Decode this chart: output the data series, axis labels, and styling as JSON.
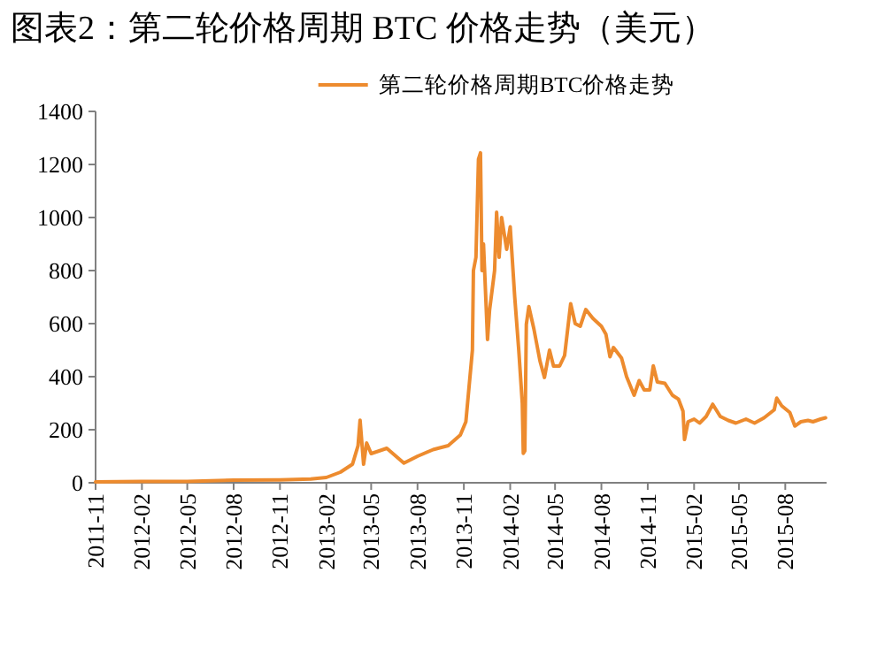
{
  "chart_data": {
    "type": "line",
    "title": "图表2：第二轮价格周期 BTC 价格走势（美元）",
    "legend": "top",
    "grid": false,
    "xlim": [
      "2011-11-01",
      "2015-10-22"
    ],
    "xticks": [
      "2011-11",
      "2012-02",
      "2012-05",
      "2012-08",
      "2012-11",
      "2013-02",
      "2013-05",
      "2013-08",
      "2013-11",
      "2014-02",
      "2014-05",
      "2014-08",
      "2014-11",
      "2015-02",
      "2015-05",
      "2015-08"
    ],
    "ylim": [
      0,
      1400
    ],
    "yticks": [
      0,
      200,
      400,
      600,
      800,
      1000,
      1200,
      1400
    ],
    "series": [
      {
        "name": "第二轮价格周期BTC价格走势",
        "color": "#ed8b2e",
        "x": [
          "2011-11-01",
          "2012-02-01",
          "2012-05-01",
          "2012-08-01",
          "2012-11-01",
          "2013-01-01",
          "2013-02-01",
          "2013-03-01",
          "2013-03-25",
          "2013-04-05",
          "2013-04-09",
          "2013-04-16",
          "2013-04-22",
          "2013-05-01",
          "2013-06-01",
          "2013-07-05",
          "2013-08-01",
          "2013-09-01",
          "2013-10-01",
          "2013-10-25",
          "2013-11-05",
          "2013-11-18",
          "2013-11-20",
          "2013-11-25",
          "2013-11-30",
          "2013-12-04",
          "2013-12-07",
          "2013-12-10",
          "2013-12-18",
          "2013-12-22",
          "2014-01-01",
          "2014-01-05",
          "2014-01-10",
          "2014-01-15",
          "2014-01-25",
          "2014-02-01",
          "2014-02-10",
          "2014-02-18",
          "2014-02-25",
          "2014-02-27",
          "2014-03-02",
          "2014-03-05",
          "2014-03-10",
          "2014-03-20",
          "2014-04-01",
          "2014-04-10",
          "2014-04-20",
          "2014-04-28",
          "2014-05-10",
          "2014-05-20",
          "2014-06-01",
          "2014-06-10",
          "2014-06-20",
          "2014-07-01",
          "2014-07-15",
          "2014-08-01",
          "2014-08-10",
          "2014-08-18",
          "2014-08-25",
          "2014-09-10",
          "2014-09-20",
          "2014-10-05",
          "2014-10-15",
          "2014-10-25",
          "2014-11-05",
          "2014-11-12",
          "2014-11-20",
          "2014-12-05",
          "2014-12-20",
          "2015-01-01",
          "2015-01-10",
          "2015-01-13",
          "2015-01-20",
          "2015-02-01",
          "2015-02-12",
          "2015-02-25",
          "2015-03-10",
          "2015-03-25",
          "2015-04-10",
          "2015-04-25",
          "2015-05-15",
          "2015-06-01",
          "2015-06-20",
          "2015-07-10",
          "2015-07-15",
          "2015-07-25",
          "2015-08-10",
          "2015-08-20",
          "2015-09-01",
          "2015-09-15",
          "2015-09-25",
          "2015-10-10",
          "2015-10-20"
        ],
        "values": [
          3,
          5,
          5,
          10,
          11,
          14,
          20,
          40,
          70,
          140,
          236,
          70,
          150,
          110,
          130,
          74,
          100,
          125,
          140,
          180,
          230,
          500,
          800,
          850,
          1220,
          1244,
          800,
          900,
          540,
          650,
          800,
          1020,
          850,
          1000,
          880,
          965,
          700,
          500,
          300,
          111,
          120,
          597,
          664,
          580,
          460,
          397,
          500,
          440,
          440,
          480,
          675,
          600,
          590,
          653,
          620,
          590,
          560,
          475,
          510,
          470,
          400,
          330,
          385,
          350,
          350,
          441,
          380,
          375,
          330,
          315,
          270,
          163,
          230,
          240,
          225,
          250,
          296,
          250,
          235,
          225,
          240,
          225,
          245,
          275,
          319,
          290,
          265,
          214,
          230,
          235,
          230,
          240,
          245
        ]
      }
    ]
  }
}
